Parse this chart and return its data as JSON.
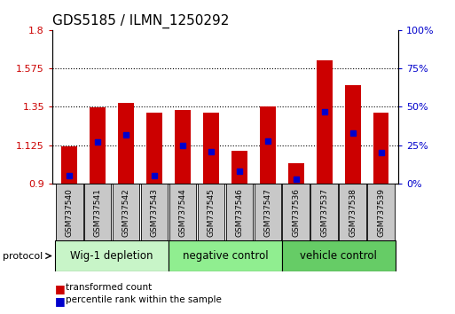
{
  "title": "GDS5185 / ILMN_1250292",
  "samples": [
    "GSM737540",
    "GSM737541",
    "GSM737542",
    "GSM737543",
    "GSM737544",
    "GSM737545",
    "GSM737546",
    "GSM737547",
    "GSM737536",
    "GSM737537",
    "GSM737538",
    "GSM737539"
  ],
  "bar_bottoms": [
    0.9,
    0.9,
    0.9,
    0.9,
    0.9,
    0.9,
    0.9,
    0.9,
    0.9,
    0.9,
    0.9,
    0.9
  ],
  "bar_tops": [
    1.12,
    1.345,
    1.375,
    1.315,
    1.33,
    1.315,
    1.09,
    1.35,
    1.02,
    1.62,
    1.475,
    1.315
  ],
  "percentile_values": [
    5,
    27,
    32,
    5,
    25,
    21,
    8,
    28,
    3,
    47,
    33,
    20
  ],
  "groups": [
    {
      "label": "Wig-1 depletion",
      "start": 0,
      "end": 4
    },
    {
      "label": "negative control",
      "start": 4,
      "end": 8
    },
    {
      "label": "vehicle control",
      "start": 8,
      "end": 12
    }
  ],
  "bar_color": "#cc0000",
  "dot_color": "#0000cc",
  "ylim_left": [
    0.9,
    1.8
  ],
  "ylim_right": [
    0,
    100
  ],
  "yticks_left": [
    0.9,
    1.125,
    1.35,
    1.575,
    1.8
  ],
  "yticks_right": [
    0,
    25,
    50,
    75,
    100
  ],
  "ytick_labels_right": [
    "0%",
    "25%",
    "50%",
    "75%",
    "100%"
  ],
  "grid_values": [
    1.125,
    1.35,
    1.575
  ],
  "bar_width": 0.55,
  "bg_color": "#ffffff",
  "tick_color_left": "#cc0000",
  "tick_color_right": "#0000cc",
  "title_fontsize": 11,
  "tick_fontsize": 8,
  "group_label_fontsize": 8.5,
  "sample_box_color": "#c8c8c8",
  "group_color_light": "#c8f5c8",
  "group_color_mid": "#90ee90",
  "group_color_dark": "#66cc66"
}
